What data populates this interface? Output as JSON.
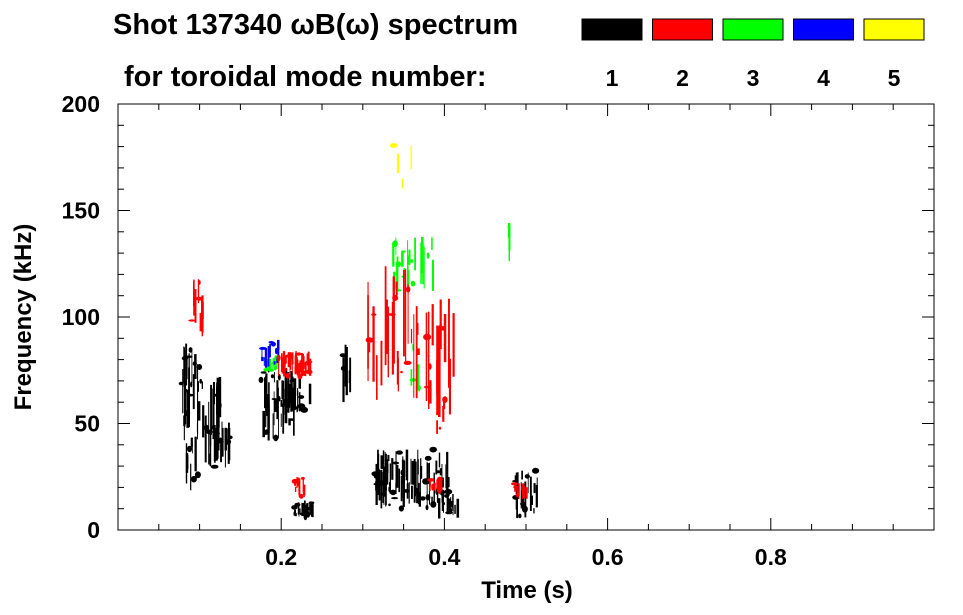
{
  "chart_data": {
    "type": "heatmap",
    "title_line1": "Shot 137340 ωB(ω) spectrum",
    "title_line2": "for toroidal mode number:",
    "xlabel": "Time (s)",
    "ylabel": "Frequency (kHz)",
    "xlim": [
      0.0,
      1.0
    ],
    "ylim": [
      0,
      200
    ],
    "x_ticks": [
      0.2,
      0.4,
      0.6,
      0.8
    ],
    "x_tick_labels": [
      "0.2",
      "0.4",
      "0.6",
      "0.8"
    ],
    "y_ticks": [
      0,
      50,
      100,
      150,
      200
    ],
    "y_tick_labels": [
      "0",
      "50",
      "100",
      "150",
      "200"
    ],
    "legend": [
      {
        "label": "1",
        "color": "#000000"
      },
      {
        "label": "2",
        "color": "#ff0000"
      },
      {
        "label": "3",
        "color": "#00ff00"
      },
      {
        "label": "4",
        "color": "#0000ff"
      },
      {
        "label": "5",
        "color": "#ffff00"
      }
    ],
    "regions": [
      {
        "mode": 1,
        "t": [
          0.077,
          0.1
        ],
        "f": [
          42,
          88
        ],
        "density": 0.8
      },
      {
        "mode": 1,
        "t": [
          0.1,
          0.125
        ],
        "f": [
          30,
          72
        ],
        "density": 0.6
      },
      {
        "mode": 1,
        "t": [
          0.112,
          0.14
        ],
        "f": [
          28,
          52
        ],
        "density": 0.5
      },
      {
        "mode": 1,
        "t": [
          0.083,
          0.098
        ],
        "f": [
          17,
          45
        ],
        "density": 0.35
      },
      {
        "mode": 1,
        "t": [
          0.175,
          0.215
        ],
        "f": [
          40,
          76
        ],
        "density": 0.55
      },
      {
        "mode": 1,
        "t": [
          0.205,
          0.235
        ],
        "f": [
          55,
          72
        ],
        "density": 0.5
      },
      {
        "mode": 1,
        "t": [
          0.214,
          0.238
        ],
        "f": [
          6,
          14
        ],
        "density": 0.6
      },
      {
        "mode": 1,
        "t": [
          0.275,
          0.285
        ],
        "f": [
          55,
          90
        ],
        "density": 0.4
      },
      {
        "mode": 1,
        "t": [
          0.315,
          0.405
        ],
        "f": [
          10,
          38
        ],
        "density": 0.6
      },
      {
        "mode": 1,
        "t": [
          0.385,
          0.415
        ],
        "f": [
          5,
          18
        ],
        "density": 0.35
      },
      {
        "mode": 1,
        "t": [
          0.485,
          0.515
        ],
        "f": [
          5,
          28
        ],
        "density": 0.45
      },
      {
        "mode": 2,
        "t": [
          0.09,
          0.105
        ],
        "f": [
          88,
          120
        ],
        "density": 0.45
      },
      {
        "mode": 2,
        "t": [
          0.195,
          0.235
        ],
        "f": [
          72,
          84
        ],
        "density": 0.85
      },
      {
        "mode": 2,
        "t": [
          0.215,
          0.228
        ],
        "f": [
          15,
          25
        ],
        "density": 0.5
      },
      {
        "mode": 2,
        "t": [
          0.305,
          0.36
        ],
        "f": [
          60,
          125
        ],
        "density": 0.25
      },
      {
        "mode": 2,
        "t": [
          0.36,
          0.41
        ],
        "f": [
          45,
          110
        ],
        "density": 0.3
      },
      {
        "mode": 2,
        "t": [
          0.38,
          0.395
        ],
        "f": [
          18,
          24
        ],
        "density": 0.5
      },
      {
        "mode": 2,
        "t": [
          0.485,
          0.5
        ],
        "f": [
          14,
          22
        ],
        "density": 0.5
      },
      {
        "mode": 3,
        "t": [
          0.335,
          0.385
        ],
        "f": [
          110,
          138
        ],
        "density": 0.3
      },
      {
        "mode": 3,
        "t": [
          0.355,
          0.38
        ],
        "f": [
          65,
          90
        ],
        "density": 0.15
      },
      {
        "mode": 3,
        "t": [
          0.475,
          0.48
        ],
        "f": [
          125,
          145
        ],
        "density": 0.6
      },
      {
        "mode": 3,
        "t": [
          0.18,
          0.2
        ],
        "f": [
          75,
          81
        ],
        "density": 0.5
      },
      {
        "mode": 4,
        "t": [
          0.175,
          0.2
        ],
        "f": [
          76,
          90
        ],
        "density": 0.35
      },
      {
        "mode": 5,
        "t": [
          0.33,
          0.37
        ],
        "f": [
          160,
          182
        ],
        "density": 0.06
      }
    ]
  }
}
